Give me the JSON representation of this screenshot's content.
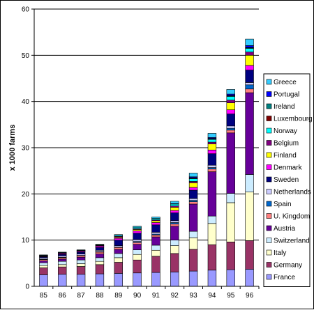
{
  "chart_data": {
    "type": "bar",
    "stacked": true,
    "ylabel": "x 1000 farms",
    "xlabel": "",
    "title": "",
    "ylim": [
      0,
      60
    ],
    "yticks": [
      0,
      10,
      20,
      30,
      40,
      50,
      60
    ],
    "grid": "horizontal",
    "legend_position": "right",
    "categories": [
      "85",
      "86",
      "87",
      "88",
      "89",
      "90",
      "91",
      "92",
      "93",
      "94",
      "95",
      "96"
    ],
    "series": [
      {
        "name": "France",
        "color": "#9999ff",
        "values": [
          2.5,
          2.6,
          2.6,
          2.7,
          2.8,
          2.9,
          3.0,
          3.1,
          3.3,
          3.5,
          3.6,
          3.7
        ]
      },
      {
        "name": "Germany",
        "color": "#993366",
        "values": [
          1.5,
          1.6,
          1.7,
          2.0,
          2.4,
          2.8,
          3.5,
          4.0,
          4.7,
          5.5,
          6.0,
          6.2
        ]
      },
      {
        "name": "Italy",
        "color": "#ffffcc",
        "values": [
          0.5,
          0.5,
          0.6,
          0.7,
          1.0,
          1.2,
          1.3,
          1.7,
          2.5,
          4.6,
          8.5,
          10.5
        ]
      },
      {
        "name": "Switzerland",
        "color": "#ccecff",
        "values": [
          0.6,
          0.7,
          0.8,
          0.8,
          0.9,
          1.0,
          1.1,
          1.2,
          1.4,
          1.6,
          2.0,
          3.8
        ]
      },
      {
        "name": "Austria",
        "color": "#660099",
        "values": [
          0.4,
          0.5,
          0.6,
          0.8,
          0.9,
          1.2,
          1.8,
          3.0,
          5.9,
          9.6,
          13.1,
          17.7
        ]
      },
      {
        "name": "U. Kingdom",
        "color": "#ff8080",
        "values": [
          0.3,
          0.3,
          0.3,
          0.4,
          0.4,
          0.4,
          0.4,
          0.5,
          0.5,
          0.6,
          0.6,
          0.8
        ]
      },
      {
        "name": "Spain",
        "color": "#0066cc",
        "values": [
          0.1,
          0.1,
          0.1,
          0.1,
          0.1,
          0.2,
          0.2,
          0.3,
          0.3,
          0.3,
          0.4,
          0.9
        ]
      },
      {
        "name": "Netherlands",
        "color": "#ccccff",
        "values": [
          0.3,
          0.3,
          0.3,
          0.3,
          0.3,
          0.4,
          0.4,
          0.4,
          0.4,
          0.5,
          0.5,
          0.5
        ]
      },
      {
        "name": "Sweden",
        "color": "#000080",
        "values": [
          0.2,
          0.3,
          0.4,
          0.6,
          1.2,
          1.4,
          1.6,
          1.7,
          1.8,
          2.5,
          2.6,
          2.7
        ]
      },
      {
        "name": "Denmark",
        "color": "#ff00ff",
        "values": [
          0.1,
          0.2,
          0.2,
          0.3,
          0.4,
          0.5,
          0.5,
          0.5,
          0.6,
          0.8,
          0.9,
          1.0
        ]
      },
      {
        "name": "Finland",
        "color": "#ffff00",
        "values": [
          0.0,
          0.0,
          0.0,
          0.1,
          0.2,
          0.3,
          0.4,
          0.7,
          1.0,
          1.3,
          1.5,
          2.2
        ]
      },
      {
        "name": "Belgium",
        "color": "#800080",
        "values": [
          0.1,
          0.1,
          0.1,
          0.1,
          0.2,
          0.2,
          0.2,
          0.3,
          0.3,
          0.4,
          0.6,
          0.7
        ]
      },
      {
        "name": "Norway",
        "color": "#00ffff",
        "values": [
          0.1,
          0.1,
          0.1,
          0.1,
          0.2,
          0.3,
          0.3,
          0.4,
          0.6,
          0.6,
          0.8,
          0.8
        ]
      },
      {
        "name": "Luxembourg",
        "color": "#800000",
        "values": [
          0.0,
          0.0,
          0.0,
          0.0,
          0.0,
          0.0,
          0.0,
          0.0,
          0.1,
          0.1,
          0.1,
          0.1
        ]
      },
      {
        "name": "Ireland",
        "color": "#008080",
        "values": [
          0.0,
          0.0,
          0.0,
          0.0,
          0.0,
          0.0,
          0.0,
          0.0,
          0.1,
          0.1,
          0.1,
          0.1
        ]
      },
      {
        "name": "Portugal",
        "color": "#0000ff",
        "values": [
          0.0,
          0.0,
          0.0,
          0.0,
          0.0,
          0.0,
          0.0,
          0.1,
          0.2,
          0.2,
          0.3,
          0.4
        ]
      },
      {
        "name": "Greece",
        "color": "#33ccff",
        "values": [
          0.1,
          0.1,
          0.1,
          0.1,
          0.2,
          0.2,
          0.3,
          0.5,
          0.8,
          0.9,
          1.0,
          1.4
        ]
      }
    ]
  }
}
